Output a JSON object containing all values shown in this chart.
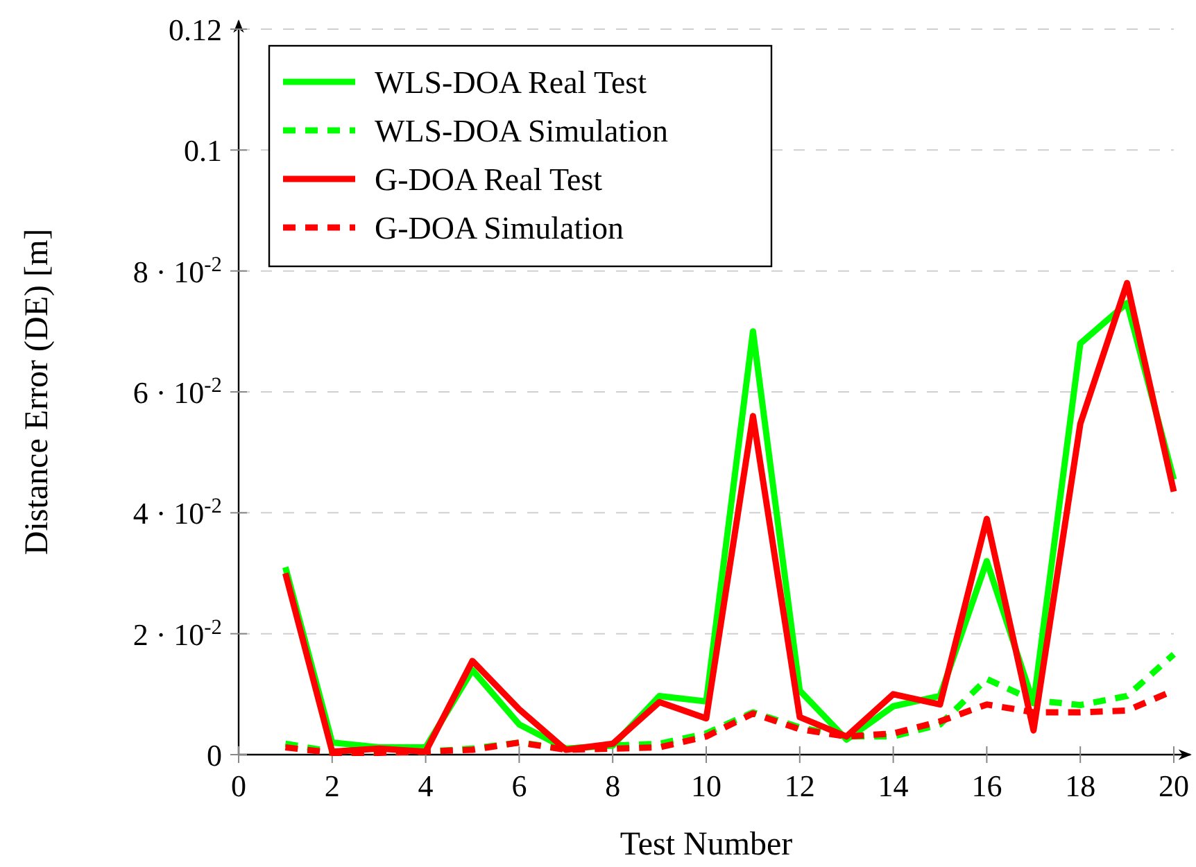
{
  "chart_data": {
    "type": "line",
    "xlabel": "Test Number",
    "ylabel": "Distance Error (DE) [m]",
    "x": [
      1,
      2,
      3,
      4,
      5,
      6,
      7,
      8,
      9,
      10,
      11,
      12,
      13,
      14,
      15,
      16,
      17,
      18,
      19,
      20
    ],
    "xlim": [
      0,
      20
    ],
    "xticks": [
      0,
      2,
      4,
      6,
      8,
      10,
      12,
      14,
      16,
      18,
      20
    ],
    "ylim": [
      0,
      0.12
    ],
    "yticks": [
      0,
      {
        "value": 0.02,
        "label": "2 · 10$^{-2}$"
      },
      {
        "value": 0.04,
        "label": "4 · 10$^{-2}$"
      },
      {
        "value": 0.06,
        "label": "6 · 10$^{-2}$"
      },
      {
        "value": 0.08,
        "label": "8 · 10$^{-2}$"
      },
      0.1,
      0.12
    ],
    "grid": "y",
    "legend": "top left",
    "marker": "none",
    "series": [
      {
        "name": "WLS-DOA Real Test",
        "color": "#00ff00",
        "line_style": "solid",
        "values": [
          0.031,
          0.002,
          0.0012,
          0.0012,
          0.014,
          0.005,
          0.001,
          0.0015,
          0.0097,
          0.0088,
          0.07,
          0.0106,
          0.0025,
          0.008,
          0.0097,
          0.032,
          0.0085,
          0.068,
          0.0747,
          0.0455
        ]
      },
      {
        "name": "WLS-DOA Simulation",
        "color": "#00ff00",
        "line_style": "dashed",
        "values": [
          0.0018,
          0.0005,
          0.0005,
          0.0005,
          0.001,
          0.002,
          0.001,
          0.0015,
          0.0018,
          0.0035,
          0.007,
          0.0045,
          0.003,
          0.003,
          0.005,
          0.0125,
          0.009,
          0.0082,
          0.0097,
          0.0166
        ]
      },
      {
        "name": "G-DOA Real Test",
        "color": "#ff0000",
        "line_style": "solid",
        "values": [
          0.03,
          0.0005,
          0.001,
          0.0005,
          0.0155,
          0.0075,
          0.0008,
          0.0018,
          0.0087,
          0.006,
          0.056,
          0.0062,
          0.003,
          0.01,
          0.0083,
          0.039,
          0.004,
          0.0547,
          0.078,
          0.0435
        ]
      },
      {
        "name": "G-DOA Simulation",
        "color": "#ff0000",
        "line_style": "dashed",
        "values": [
          0.0012,
          0.0003,
          0.0003,
          0.0005,
          0.0008,
          0.002,
          0.0008,
          0.001,
          0.0012,
          0.003,
          0.0068,
          0.0042,
          0.003,
          0.0035,
          0.0055,
          0.0083,
          0.007,
          0.007,
          0.0073,
          0.0106
        ]
      }
    ]
  }
}
